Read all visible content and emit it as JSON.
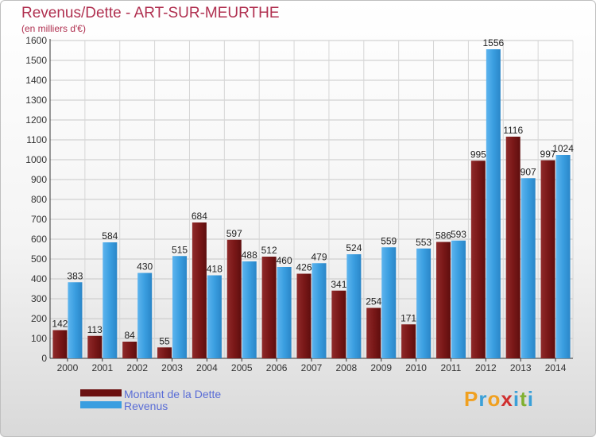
{
  "header": {
    "title": "Revenus/Dette - ART-SUR-MEURTHE",
    "subtitle": "(en milliers d'€)"
  },
  "chart_data": {
    "type": "bar",
    "categories": [
      "2000",
      "2001",
      "2002",
      "2003",
      "2004",
      "2005",
      "2006",
      "2007",
      "2008",
      "2009",
      "2010",
      "2011",
      "2012",
      "2013",
      "2014"
    ],
    "series": [
      {
        "name": "Montant de la Dette",
        "color": "#7a1a1a",
        "values": [
          142,
          113,
          84,
          55,
          684,
          597,
          512,
          426,
          341,
          254,
          171,
          586,
          995,
          1116,
          997
        ]
      },
      {
        "name": "Revenus",
        "color": "#3a9ee0",
        "values": [
          383,
          584,
          430,
          515,
          418,
          488,
          460,
          479,
          524,
          559,
          553,
          593,
          1556,
          907,
          1024
        ]
      }
    ],
    "ylim": [
      0,
      1600
    ],
    "yticks": [
      0,
      100,
      200,
      300,
      400,
      500,
      600,
      700,
      800,
      900,
      1000,
      1100,
      1200,
      1300,
      1400,
      1500,
      1600
    ],
    "grid": true,
    "legend_position": "bottom-left"
  },
  "legend": {
    "items": [
      {
        "label": "Montant de la Dette",
        "color": "#7a1a1a"
      },
      {
        "label": "Revenus",
        "color": "#3a9ee0"
      }
    ]
  },
  "logo": {
    "letters": [
      "P",
      "r",
      "o",
      "x",
      "i",
      "t",
      "i"
    ]
  }
}
